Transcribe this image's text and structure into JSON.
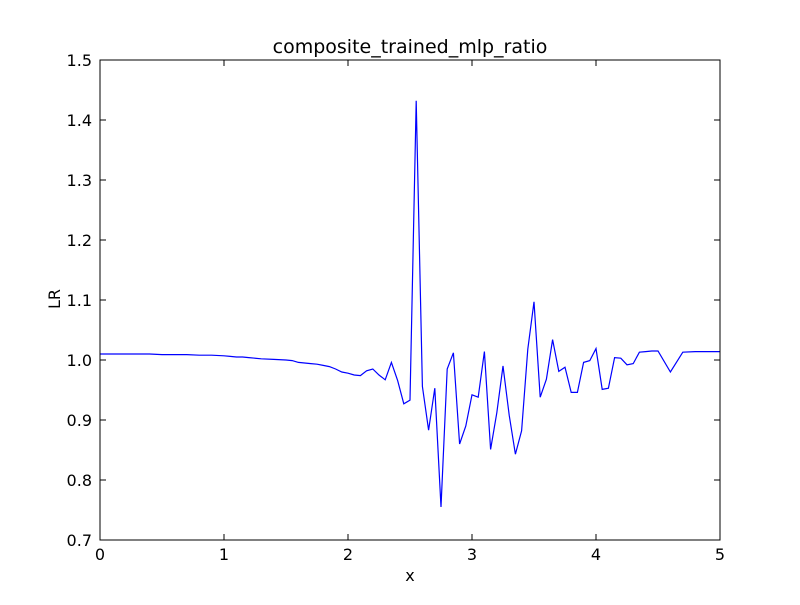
{
  "chart_data": {
    "type": "line",
    "title": "composite_trained_mlp_ratio",
    "xlabel": "x",
    "ylabel": "LR",
    "xlim": [
      0,
      5
    ],
    "ylim": [
      0.7,
      1.5
    ],
    "x_ticks": [
      "0",
      "1",
      "2",
      "3",
      "4",
      "5"
    ],
    "y_ticks": [
      "0.7",
      "0.8",
      "0.9",
      "1.0",
      "1.1",
      "1.2",
      "1.3",
      "1.4",
      "1.5"
    ],
    "grid": false,
    "line_color": "#0000ff",
    "x": [
      0.0,
      0.1,
      0.2,
      0.3,
      0.4,
      0.5,
      0.6,
      0.7,
      0.8,
      0.9,
      1.0,
      1.05,
      1.1,
      1.15,
      1.2,
      1.3,
      1.4,
      1.5,
      1.55,
      1.6,
      1.65,
      1.7,
      1.75,
      1.8,
      1.85,
      1.9,
      1.95,
      2.0,
      2.05,
      2.1,
      2.15,
      2.2,
      2.25,
      2.3,
      2.35,
      2.4,
      2.45,
      2.5,
      2.55,
      2.6,
      2.65,
      2.7,
      2.75,
      2.8,
      2.85,
      2.9,
      2.95,
      3.0,
      3.05,
      3.1,
      3.15,
      3.2,
      3.25,
      3.3,
      3.35,
      3.4,
      3.45,
      3.5,
      3.55,
      3.6,
      3.65,
      3.7,
      3.75,
      3.8,
      3.85,
      3.9,
      3.95,
      4.0,
      4.05,
      4.1,
      4.15,
      4.2,
      4.25,
      4.3,
      4.35,
      4.4,
      4.45,
      4.5,
      4.6,
      4.7,
      4.8,
      4.9,
      5.0
    ],
    "y": [
      1.01,
      1.01,
      1.01,
      1.01,
      1.01,
      1.009,
      1.009,
      1.009,
      1.008,
      1.008,
      1.007,
      1.006,
      1.005,
      1.005,
      1.004,
      1.002,
      1.001,
      1.0,
      0.999,
      0.996,
      0.995,
      0.994,
      0.993,
      0.991,
      0.989,
      0.985,
      0.98,
      0.978,
      0.975,
      0.974,
      0.982,
      0.985,
      0.975,
      0.967,
      0.996,
      0.966,
      0.927,
      0.933,
      1.432,
      0.956,
      0.883,
      0.953,
      0.755,
      0.985,
      1.012,
      0.86,
      0.89,
      0.942,
      0.938,
      1.014,
      0.851,
      0.912,
      0.99,
      0.908,
      0.843,
      0.882,
      1.018,
      1.097,
      0.938,
      0.968,
      1.034,
      0.981,
      0.988,
      0.946,
      0.946,
      0.996,
      0.999,
      1.019,
      0.951,
      0.953,
      1.004,
      1.003,
      0.992,
      0.994,
      1.013,
      1.014,
      1.015,
      1.015,
      0.98,
      1.013,
      1.014,
      1.014,
      1.014
    ]
  }
}
